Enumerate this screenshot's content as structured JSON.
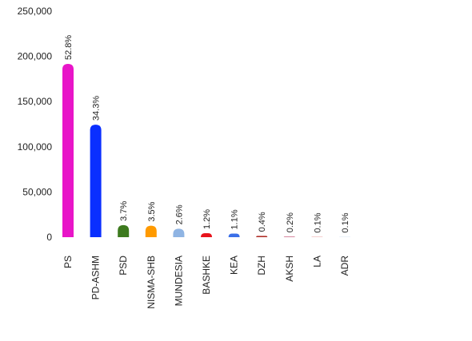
{
  "chart_data": {
    "type": "bar",
    "categories": [
      "PS",
      "PD-ASHM",
      "PSD",
      "NISMA-SHB",
      "MUNDESIA",
      "BASHKE",
      "KEA",
      "DZH",
      "AKSH",
      "LA",
      "ADR"
    ],
    "values": [
      191700,
      124500,
      13400,
      12700,
      9400,
      4400,
      4000,
      1450,
      700,
      360,
      360
    ],
    "share_labels": [
      "52.8%",
      "34.3%",
      "3.7%",
      "3.5%",
      "2.6%",
      "1.2%",
      "1.1%",
      "0.4%",
      "0.2%",
      "0.1%",
      "0.1%"
    ],
    "colors": [
      "#e815c8",
      "#0a2fff",
      "#3d7a1e",
      "#ff9a00",
      "#8fb4e3",
      "#e8141c",
      "#3a6fe8",
      "#b0302a",
      "#c86080",
      "#e88080",
      "#cce0f0"
    ],
    "ylim": [
      0,
      250000
    ],
    "yticks": [
      {
        "value": 0,
        "label": "0"
      },
      {
        "value": 50000,
        "label": "50,000"
      },
      {
        "value": 100000,
        "label": "100,000"
      },
      {
        "value": 150000,
        "label": "150,000"
      },
      {
        "value": 200000,
        "label": "200,000"
      },
      {
        "value": 250000,
        "label": "250,000"
      }
    ]
  }
}
